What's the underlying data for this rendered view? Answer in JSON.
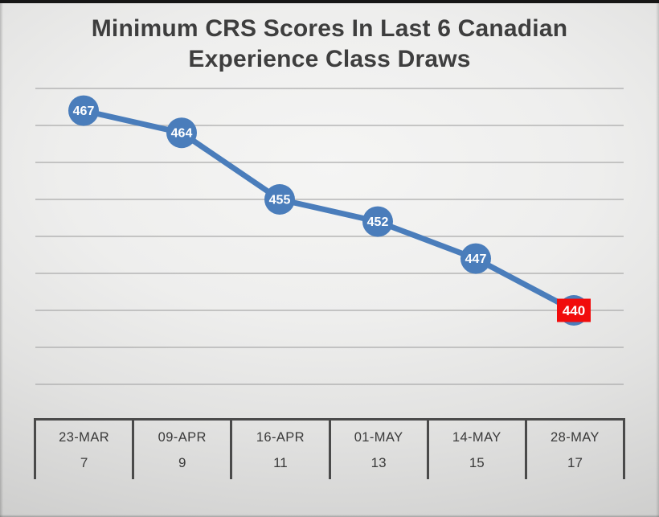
{
  "slide": {
    "title": "Minimum CRS Scores In Last 6 Canadian Experience Class Draws"
  },
  "chart_data": {
    "type": "line",
    "title": "Minimum CRS Scores In Last 6 Canadian Experience Class Draws",
    "categories": [
      "23-MAR",
      "09-APR",
      "16-APR",
      "01-MAY",
      "14-MAY",
      "28-MAY"
    ],
    "draw_numbers": [
      "7",
      "9",
      "11",
      "13",
      "15",
      "17"
    ],
    "values": [
      467,
      464,
      455,
      452,
      447,
      440
    ],
    "data_labels": [
      "467",
      "464",
      "455",
      "452",
      "447",
      "440"
    ],
    "ylim": [
      430,
      470
    ],
    "gridline_step": 5,
    "grid": true,
    "legend": "none",
    "highlight_index": 5
  },
  "colors": {
    "line": "#4A7DBB",
    "marker_fill": "#4A7DBB",
    "marker_label_text": "#FFFFFF",
    "highlight_box": "#F10C0C",
    "highlight_text": "#FFFFFF",
    "gridline": "#ACACAC",
    "title_text": "#3E3E3E",
    "axis_border": "#4A4A4A",
    "axis_text": "#3A3A3A",
    "top_border": "#161616"
  }
}
